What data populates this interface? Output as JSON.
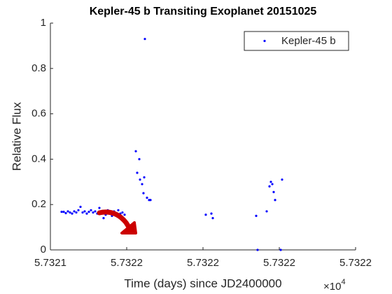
{
  "chart_data": {
    "type": "scatter",
    "title": "Kepler-45 b Transiting Exoplanet 20151025",
    "x_label": "Time (days) since JD2400000",
    "y_label": "Relative Flux",
    "x_exponent": {
      "base": "×10",
      "power": "4"
    },
    "xlim": [
      57321.4,
      57322.2
    ],
    "xticks": [
      {
        "value": 57321.4,
        "label": "5.7321"
      },
      {
        "value": 57321.6,
        "label": "5.7322"
      },
      {
        "value": 57321.8,
        "label": "5.7322"
      },
      {
        "value": 57322.0,
        "label": "5.7322"
      },
      {
        "value": 57322.2,
        "label": "5.7322"
      }
    ],
    "ylim": [
      0,
      1
    ],
    "yticks": [
      0,
      0.2,
      0.4,
      0.6,
      0.8,
      1
    ],
    "legend_position": "upper right",
    "series": [
      {
        "name": "Kepler-45 b",
        "color": "#0000ff",
        "x": [
          57321.4294,
          57321.4349,
          57321.4404,
          57321.4459,
          57321.4514,
          57321.4569,
          57321.4624,
          57321.4679,
          57321.4734,
          57321.4789,
          57321.4844,
          57321.4899,
          57321.4954,
          57321.5009,
          57321.5064,
          57321.5119,
          57321.5174,
          57321.5229,
          57321.5284,
          57321.5339,
          57321.5394,
          57321.5449,
          57321.5504,
          57321.5559,
          57321.5614,
          57321.5669,
          57321.5724,
          57321.5779,
          57321.5834,
          57321.5889,
          57321.5945,
          57321.6239,
          57321.6275,
          57321.633,
          57321.6349,
          57321.6404,
          57321.644,
          57321.6459,
          57321.6477,
          57321.6532,
          57321.6587,
          57321.6624,
          57321.8073,
          57321.822,
          57321.8257,
          57321.9394,
          57321.9431,
          57321.967,
          57321.9743,
          57321.978,
          57321.9817,
          57321.9853,
          57321.989,
          57322.0037,
          57322.0073
        ],
        "values": [
          0.168,
          0.168,
          0.162,
          0.17,
          0.165,
          0.16,
          0.17,
          0.165,
          0.175,
          0.19,
          0.165,
          0.17,
          0.16,
          0.168,
          0.175,
          0.165,
          0.17,
          0.16,
          0.185,
          0.165,
          0.14,
          0.155,
          0.175,
          0.165,
          0.15,
          0.17,
          0.16,
          0.175,
          0.16,
          0.165,
          0.155,
          0.435,
          0.34,
          0.4,
          0.31,
          0.29,
          0.25,
          0.32,
          0.93,
          0.23,
          0.22,
          0.22,
          0.155,
          0.16,
          0.14,
          0.15,
          0.0,
          0.17,
          0.28,
          0.3,
          0.29,
          0.255,
          0.22,
          0.0,
          0.31
        ]
      }
    ]
  }
}
